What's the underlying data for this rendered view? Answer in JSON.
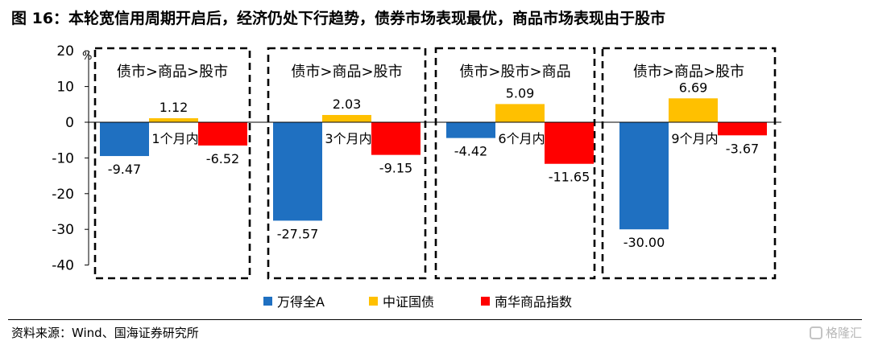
{
  "source": "资料来源：Wind、国海证券研究所",
  "watermark": "格隆汇",
  "chart_data": {
    "type": "bar",
    "title": "图 16：本轮宽信用周期开启后，经济仍处下行趋势，债券市场表现最优，商品市场表现由于股市",
    "categories": [
      "1个月内",
      "3个月内",
      "6个月内",
      "9个月内"
    ],
    "series": [
      {
        "name": "万得全A",
        "color": "#1F70C1",
        "values": [
          -9.47,
          -27.57,
          -4.42,
          -30.0
        ]
      },
      {
        "name": "中证国债",
        "color": "#FFC000",
        "values": [
          1.12,
          2.03,
          5.09,
          6.69
        ]
      },
      {
        "name": "南华商品指数",
        "color": "#FF0000",
        "values": [
          -6.52,
          -9.15,
          -11.65,
          -3.67
        ]
      }
    ],
    "group_annotations": [
      "债市>商品>股市",
      "债市>商品>股市",
      "债市>股市>商品",
      "债市>商品>股市"
    ],
    "ylabel": "%",
    "xlabel": "",
    "ylim": [
      -40,
      20
    ],
    "yticks": [
      20,
      10,
      0,
      -10,
      -20,
      -30,
      -40
    ],
    "value_decimals": 2,
    "grid": false,
    "legend": "bottom"
  }
}
